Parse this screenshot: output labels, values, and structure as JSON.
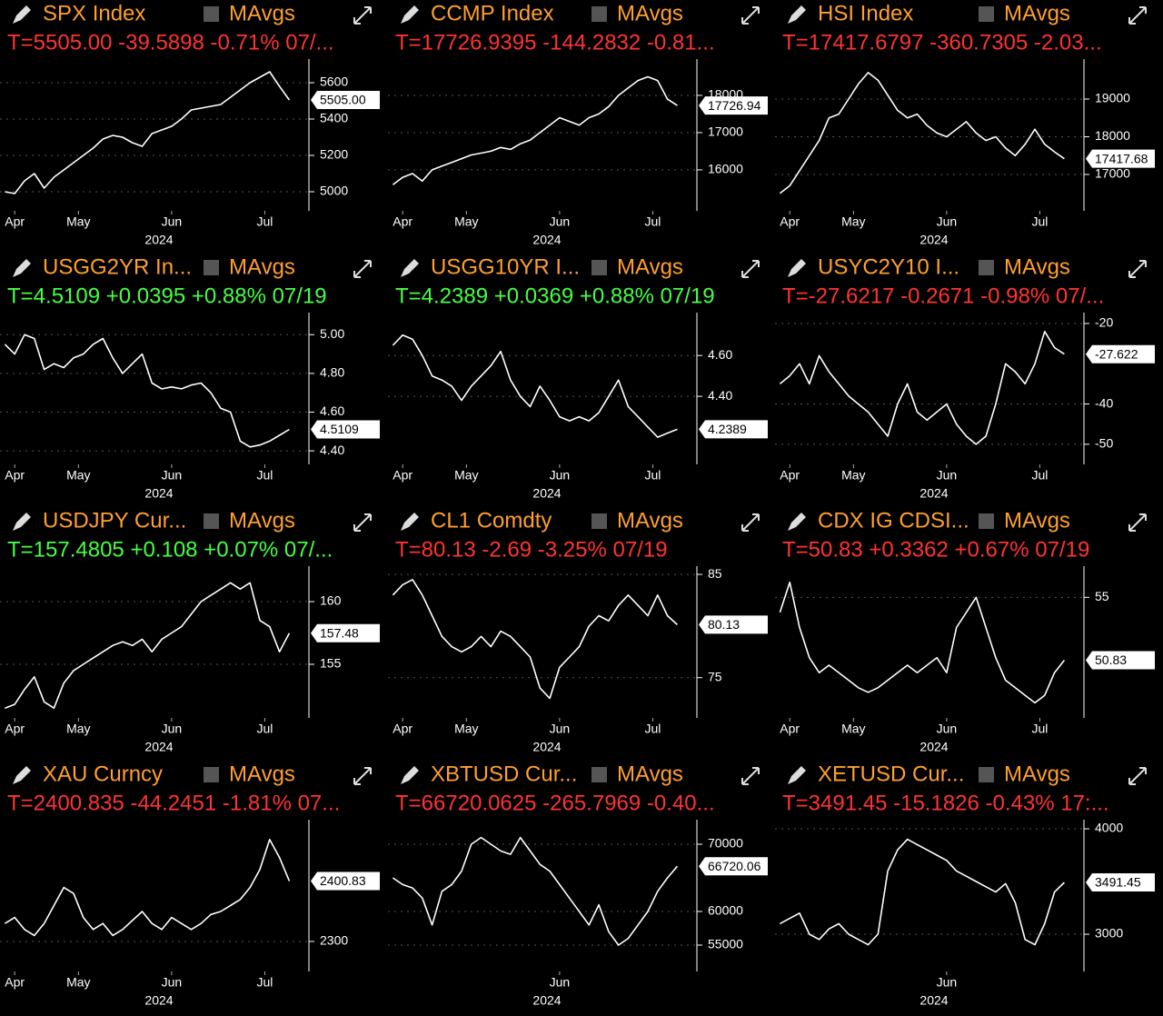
{
  "chart_data": [
    {
      "type": "line",
      "title": "SPX Index",
      "legend_label": "MAvgs",
      "quote": "T=5505.00 -39.5898 -0.71% 07/...",
      "quote_color": "#ff3333",
      "color": "#ffffff",
      "values": [
        5000,
        4990,
        5060,
        5100,
        5020,
        5080,
        5120,
        5160,
        5200,
        5240,
        5290,
        5310,
        5300,
        5270,
        5250,
        5320,
        5340,
        5360,
        5400,
        5450,
        5460,
        5470,
        5480,
        5520,
        5560,
        5600,
        5630,
        5660,
        5580,
        5505
      ],
      "last_value_label": "5505.00",
      "xlim": [
        -0.5,
        31
      ],
      "xticks": [
        {
          "value": 1,
          "label": "Apr"
        },
        {
          "value": 7.5,
          "label": "May"
        },
        {
          "value": 17,
          "label": "Jun"
        },
        {
          "value": 26.5,
          "label": "Jul"
        }
      ],
      "x_label": "2024",
      "ylim": [
        4895,
        5730
      ],
      "yticks": [
        5000,
        5200,
        5400,
        5600
      ],
      "grid": true
    },
    {
      "type": "line",
      "title": "CCMP Index",
      "legend_label": "MAvgs",
      "quote": "T=17726.9395 -144.2832 -0.81...",
      "quote_color": "#ff3333",
      "color": "#ffffff",
      "values": [
        15600,
        15800,
        15900,
        15700,
        16000,
        16100,
        16200,
        16300,
        16400,
        16450,
        16500,
        16600,
        16550,
        16700,
        16800,
        17000,
        17200,
        17400,
        17300,
        17200,
        17400,
        17500,
        17700,
        18000,
        18200,
        18400,
        18500,
        18400,
        17900,
        17726.94
      ],
      "last_value_label": "17726.94",
      "xlim": [
        -0.5,
        31
      ],
      "xticks": [
        {
          "value": 1,
          "label": "Apr"
        },
        {
          "value": 7.5,
          "label": "May"
        },
        {
          "value": 17,
          "label": "Jun"
        },
        {
          "value": 26.5,
          "label": "Jul"
        }
      ],
      "x_label": "2024",
      "ylim": [
        14900,
        18975
      ],
      "yticks": [
        16000,
        17000,
        18000
      ],
      "grid": true
    },
    {
      "type": "line",
      "title": "HSI Index",
      "legend_label": "MAvgs",
      "quote": "T=17417.6797 -360.7305 -2.03...",
      "quote_color": "#ff3333",
      "color": "#ffffff",
      "values": [
        16500,
        16700,
        17100,
        17500,
        17900,
        18500,
        18600,
        19000,
        19400,
        19700,
        19500,
        19100,
        18700,
        18500,
        18600,
        18300,
        18100,
        18000,
        18200,
        18400,
        18100,
        17900,
        18000,
        17700,
        17500,
        17800,
        18200,
        17800,
        17600,
        17417.68
      ],
      "last_value_label": "17417.68",
      "xlim": [
        -0.5,
        31
      ],
      "xticks": [
        {
          "value": 1,
          "label": "Apr"
        },
        {
          "value": 7.5,
          "label": "May"
        },
        {
          "value": 17,
          "label": "Jun"
        },
        {
          "value": 26.5,
          "label": "Jul"
        }
      ],
      "x_label": "2024",
      "ylim": [
        16036,
        20060
      ],
      "yticks": [
        17000,
        18000,
        19000
      ],
      "grid": true
    },
    {
      "type": "line",
      "title": "USGG2YR In...",
      "legend_label": "MAvgs",
      "quote": "T=4.5109 +0.0395 +0.88% 07/19",
      "quote_color": "#44ff44",
      "color": "#ffffff",
      "values": [
        4.95,
        4.9,
        5.0,
        4.98,
        4.82,
        4.85,
        4.83,
        4.88,
        4.9,
        4.95,
        4.98,
        4.88,
        4.8,
        4.85,
        4.9,
        4.75,
        4.72,
        4.73,
        4.72,
        4.74,
        4.75,
        4.7,
        4.62,
        4.6,
        4.45,
        4.42,
        4.43,
        4.45,
        4.48,
        4.5109
      ],
      "last_value_label": "4.5109",
      "xlim": [
        -0.5,
        31
      ],
      "xticks": [
        {
          "value": 1,
          "label": "Apr"
        },
        {
          "value": 7.5,
          "label": "May"
        },
        {
          "value": 17,
          "label": "Jun"
        },
        {
          "value": 26.5,
          "label": "Jul"
        }
      ],
      "x_label": "2024",
      "ylim": [
        4.33,
        5.114
      ],
      "yticks": [
        {
          "value": 4.4,
          "label": "4.40"
        },
        {
          "value": 4.6,
          "label": "4.60"
        },
        {
          "value": 4.8,
          "label": "4.80"
        },
        {
          "value": 5,
          "label": "5.00"
        }
      ],
      "grid": true
    },
    {
      "type": "line",
      "title": "USGG10YR I...",
      "legend_label": "MAvgs",
      "quote": "T=4.2389 +0.0369 +0.88% 07/19",
      "quote_color": "#44ff44",
      "color": "#ffffff",
      "values": [
        4.65,
        4.7,
        4.68,
        4.6,
        4.5,
        4.48,
        4.45,
        4.38,
        4.45,
        4.5,
        4.55,
        4.62,
        4.48,
        4.4,
        4.35,
        4.45,
        4.38,
        4.3,
        4.28,
        4.3,
        4.28,
        4.32,
        4.4,
        4.48,
        4.35,
        4.3,
        4.25,
        4.2,
        4.22,
        4.2389
      ],
      "last_value_label": "4.2389",
      "xlim": [
        -0.5,
        31
      ],
      "xticks": [
        {
          "value": 1,
          "label": "Apr"
        },
        {
          "value": 7.5,
          "label": "May"
        },
        {
          "value": 17,
          "label": "Jun"
        },
        {
          "value": 26.5,
          "label": "Jul"
        }
      ],
      "x_label": "2024",
      "ylim": [
        4.067,
        4.81
      ],
      "yticks": [
        {
          "value": 4.4,
          "label": "4.40"
        },
        {
          "value": 4.6,
          "label": "4.60"
        }
      ],
      "grid": true
    },
    {
      "type": "line",
      "title": "USYC2Y10 I...",
      "legend_label": "MAvgs",
      "quote": "T=-27.6217 -0.2671 -0.98% 07/...",
      "quote_color": "#ff3333",
      "color": "#ffffff",
      "values": [
        -35,
        -33,
        -30,
        -35,
        -28,
        -32,
        -35,
        -38,
        -40,
        -42,
        -45,
        -48,
        -40,
        -35,
        -42,
        -44,
        -42,
        -40,
        -45,
        -48,
        -50,
        -48,
        -40,
        -30,
        -32,
        -35,
        -30,
        -22,
        -26,
        -27.622
      ],
      "last_value_label": "-27.622",
      "xlim": [
        -0.5,
        31
      ],
      "xticks": [
        {
          "value": 1,
          "label": "Apr"
        },
        {
          "value": 7.5,
          "label": "May"
        },
        {
          "value": 17,
          "label": "Jun"
        },
        {
          "value": 26.5,
          "label": "Jul"
        }
      ],
      "x_label": "2024",
      "ylim": [
        -55,
        -17.3
      ],
      "yticks": [
        -50,
        -40,
        -20
      ],
      "grid": true
    },
    {
      "type": "line",
      "title": "USDJPY Cur...",
      "legend_label": "MAvgs",
      "quote": "T=157.4805 +0.108 +0.07% 07/...",
      "quote_color": "#44ff44",
      "color": "#ffffff",
      "values": [
        151.5,
        151.8,
        153,
        154,
        152,
        151.5,
        153.5,
        154.5,
        155,
        155.5,
        156,
        156.5,
        156.8,
        156.5,
        157,
        156,
        157,
        157.5,
        158,
        159,
        160,
        160.5,
        161,
        161.5,
        161,
        161.5,
        158.5,
        158,
        156,
        157.48
      ],
      "last_value_label": "157.48",
      "xlim": [
        -0.5,
        31
      ],
      "xticks": [
        {
          "value": 1,
          "label": "Apr"
        },
        {
          "value": 7.5,
          "label": "May"
        },
        {
          "value": 17,
          "label": "Jun"
        },
        {
          "value": 26.5,
          "label": "Jul"
        }
      ],
      "x_label": "2024",
      "ylim": [
        150.72,
        162.83
      ],
      "yticks": [
        155,
        160
      ],
      "grid": true
    },
    {
      "type": "line",
      "title": "CL1 Comdty",
      "legend_label": "MAvgs",
      "quote": "T=80.13 -2.69 -3.25% 07/19",
      "quote_color": "#ff3333",
      "color": "#ffffff",
      "values": [
        83,
        84,
        84.5,
        83,
        81,
        79,
        78,
        77.5,
        78,
        79,
        78,
        79.5,
        79,
        78,
        77,
        74,
        73,
        76,
        77,
        78,
        80,
        81,
        80.5,
        82,
        83,
        82,
        81,
        83,
        81,
        80.13
      ],
      "last_value_label": "80.13",
      "xlim": [
        -0.5,
        31
      ],
      "xticks": [
        {
          "value": 1,
          "label": "Apr"
        },
        {
          "value": 7.5,
          "label": "May"
        },
        {
          "value": 17,
          "label": "Jun"
        },
        {
          "value": 26.5,
          "label": "Jul"
        }
      ],
      "x_label": "2024",
      "ylim": [
        71.1,
        85.8
      ],
      "yticks": [
        75,
        85
      ],
      "grid": true
    },
    {
      "type": "line",
      "title": "CDX IG CDSI...",
      "legend_label": "MAvgs",
      "quote": "T=50.83 +0.3362 +0.67% 07/19",
      "quote_color": "#ff3333",
      "color": "#ffffff",
      "values": [
        54,
        56,
        53,
        51,
        50,
        50.5,
        50,
        49.5,
        49,
        48.7,
        49,
        49.5,
        50,
        50.5,
        50,
        50.5,
        51,
        50,
        53,
        54,
        55,
        53,
        51,
        49.5,
        49,
        48.5,
        48,
        48.5,
        50,
        50.83
      ],
      "last_value_label": "50.83",
      "xlim": [
        -0.5,
        31
      ],
      "xticks": [
        {
          "value": 1,
          "label": "Apr"
        },
        {
          "value": 7.5,
          "label": "May"
        },
        {
          "value": 17,
          "label": "Jun"
        },
        {
          "value": 26.5,
          "label": "Jul"
        }
      ],
      "x_label": "2024",
      "ylim": [
        47.0,
        57.07
      ],
      "yticks": [
        55
      ],
      "grid": true
    },
    {
      "type": "line",
      "title": "XAU Curncy",
      "legend_label": "MAvgs",
      "quote": "T=2400.835 -44.2451 -1.81% 07...",
      "quote_color": "#ff3333",
      "color": "#ffffff",
      "values": [
        2330,
        2340,
        2320,
        2310,
        2330,
        2360,
        2390,
        2380,
        2340,
        2320,
        2330,
        2310,
        2320,
        2335,
        2350,
        2330,
        2320,
        2340,
        2330,
        2320,
        2330,
        2345,
        2350,
        2360,
        2370,
        2390,
        2420,
        2470,
        2440,
        2400.83
      ],
      "last_value_label": "2400.83",
      "xlim": [
        -0.5,
        31
      ],
      "xticks": [
        {
          "value": 1,
          "label": "Apr"
        },
        {
          "value": 7.5,
          "label": "May"
        },
        {
          "value": 17,
          "label": "Jun"
        },
        {
          "value": 26.5,
          "label": "Jul"
        }
      ],
      "x_label": "2024",
      "ylim": [
        2250,
        2503
      ],
      "yticks": [
        2300
      ],
      "grid": true
    },
    {
      "type": "line",
      "title": "XBTUSD Cur...",
      "legend_label": "MAvgs",
      "quote": "T=66720.0625 -265.7969 -0.40...",
      "quote_color": "#ff3333",
      "color": "#ffffff",
      "values": [
        65000,
        64000,
        63500,
        62000,
        58000,
        63000,
        64000,
        66000,
        70000,
        71000,
        70000,
        69000,
        68500,
        71000,
        69000,
        67000,
        66000,
        64000,
        62000,
        60000,
        58000,
        61000,
        57000,
        55000,
        56000,
        58000,
        60000,
        63000,
        65000,
        66720.06
      ],
      "last_value_label": "66720.06",
      "xlim": [
        -0.5,
        31
      ],
      "xticks": [
        {
          "value": 17,
          "label": "Jun"
        }
      ],
      "x_label": "2024",
      "ylim": [
        51080,
        73650
      ],
      "yticks": [
        55000,
        60000,
        70000
      ],
      "grid": true
    },
    {
      "type": "line",
      "title": "XETUSD Cur...",
      "legend_label": "MAvgs",
      "quote": "T=3491.45 -15.1826 -0.43% 17:...",
      "quote_color": "#ff3333",
      "color": "#ffffff",
      "values": [
        3100,
        3150,
        3200,
        3000,
        2950,
        3050,
        3100,
        3000,
        2950,
        2900,
        3000,
        3600,
        3800,
        3900,
        3850,
        3800,
        3750,
        3700,
        3600,
        3550,
        3500,
        3450,
        3400,
        3480,
        3300,
        2950,
        2900,
        3100,
        3400,
        3491.45
      ],
      "last_value_label": "3491.45",
      "xlim": [
        -0.5,
        31
      ],
      "xticks": [
        {
          "value": 17,
          "label": "Jun"
        }
      ],
      "x_label": "2024",
      "ylim": [
        2647,
        4086
      ],
      "yticks": [
        3000,
        4000
      ],
      "grid": true
    }
  ]
}
